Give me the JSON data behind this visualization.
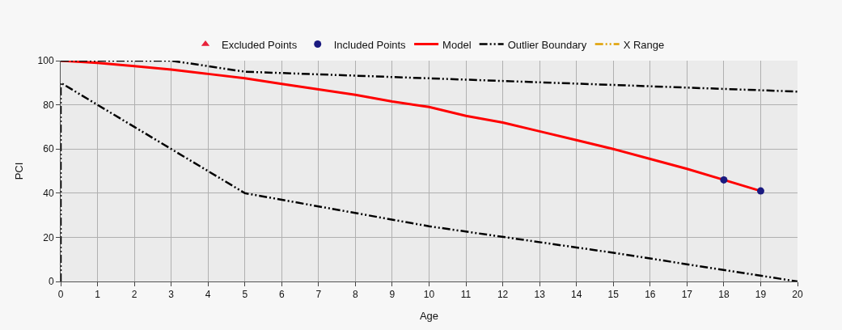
{
  "chart_data": {
    "type": "line",
    "xlabel": "Age",
    "ylabel": "PCI",
    "xlim": [
      0,
      20
    ],
    "xticks": [
      0,
      1,
      2,
      3,
      4,
      5,
      6,
      7,
      8,
      9,
      10,
      11,
      12,
      13,
      14,
      15,
      16,
      17,
      18,
      19,
      20
    ],
    "ylim": [
      0,
      100
    ],
    "yticks": [
      0,
      20,
      40,
      60,
      80,
      100
    ],
    "grid": true,
    "legend": "top",
    "series": [
      {
        "name": "Excluded Points",
        "type": "scatter",
        "marker": "triangle",
        "color": "#e8213a"
      },
      {
        "name": "Included Points",
        "type": "scatter",
        "marker": "circle",
        "color": "#1a1a80",
        "x": [
          18,
          19
        ],
        "values": [
          46,
          41
        ]
      },
      {
        "name": "Model",
        "line_style": "solid",
        "color": "#ff0000",
        "x": [
          0,
          1,
          2,
          3,
          4,
          5,
          6,
          7,
          8,
          9,
          10,
          11,
          12,
          13,
          14,
          15,
          16,
          17,
          18,
          19
        ],
        "values": [
          100,
          99,
          97.5,
          96,
          94,
          92,
          89.5,
          87,
          84.5,
          81.5,
          79,
          75,
          72,
          68,
          64,
          60,
          55.5,
          51,
          46,
          41
        ]
      },
      {
        "name": "Outlier Boundary",
        "line_style": "dashed",
        "color": "#000000",
        "x": [
          0,
          3,
          5,
          10,
          15,
          20
        ],
        "values": [
          100,
          100,
          95,
          92,
          89,
          86
        ]
      },
      {
        "line_style": "dashed",
        "color": "#000000",
        "x": [
          0,
          0,
          1,
          2,
          3,
          4,
          5,
          10,
          15,
          20
        ],
        "values": [
          0,
          90,
          80,
          70,
          60,
          50,
          40,
          25,
          13,
          0
        ]
      },
      {
        "name": "X Range",
        "line_style": "dashed",
        "color": "#e0a000"
      }
    ]
  }
}
